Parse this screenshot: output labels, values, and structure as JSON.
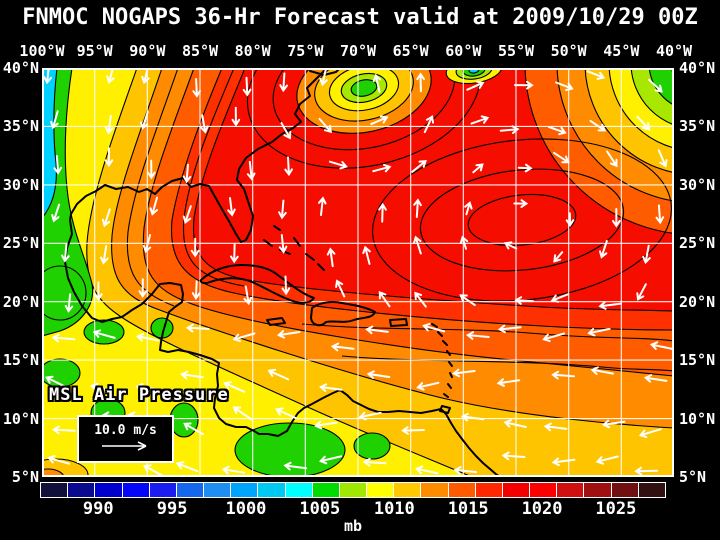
{
  "title": "FNMOC NOGAPS 36-Hr Forecast valid at 2009/10/29 00Z",
  "axes": {
    "lon_labels": [
      "100°W",
      "95°W",
      "90°W",
      "85°W",
      "80°W",
      "75°W",
      "70°W",
      "65°W",
      "60°W",
      "55°W",
      "50°W",
      "45°W",
      "40°W"
    ],
    "lat_labels": [
      "40°N",
      "35°N",
      "30°N",
      "25°N",
      "20°N",
      "15°N",
      "10°N",
      "5°N"
    ]
  },
  "overlay": {
    "field_label": "MSL Air Pressure",
    "wind_scale_label": "10.0 m/s"
  },
  "colorbar": {
    "unit": "mb",
    "tick_labels": [
      "990",
      "995",
      "1000",
      "1005",
      "1010",
      "1015",
      "1020",
      "1025"
    ],
    "cell_colors": [
      "#10103A",
      "#0A0A8F",
      "#0000CD",
      "#0505FA",
      "#1A1CF0",
      "#1567EC",
      "#1E8EF0",
      "#00A4FA",
      "#00C8F0",
      "#00FFFF",
      "#00DC00",
      "#A0E800",
      "#FFFF00",
      "#FFC800",
      "#FF8C00",
      "#FF5A00",
      "#FF2800",
      "#F50000",
      "#FF0000",
      "#D01010",
      "#A01010",
      "#701010",
      "#301010"
    ]
  },
  "chart_data": {
    "type": "heatmap",
    "title": "FNMOC NOGAPS 36-Hr Forecast valid at 2009/10/29 00Z",
    "model": "FNMOC NOGAPS",
    "forecast_hour": 36,
    "valid_time": "2009/10/29 00Z",
    "variable": "MSL Air Pressure",
    "unit": "mb",
    "lon_ticks_deg_w": [
      100,
      95,
      90,
      85,
      80,
      75,
      70,
      65,
      60,
      55,
      50,
      45,
      40
    ],
    "lat_ticks_deg_n": [
      40,
      35,
      30,
      25,
      20,
      15,
      10,
      5
    ],
    "colorbar_ticks_mb": [
      990,
      995,
      1000,
      1005,
      1010,
      1015,
      1020,
      1025
    ],
    "wind_reference_mps": 10.0,
    "palette": {
      "red": "#F50D00",
      "orangered2": "#FF3000",
      "orangered": "#FF5C00",
      "orange": "#FF8C00",
      "amber": "#FFC400",
      "yellow": "#FFF000",
      "ygreen": "#A8E800",
      "green": "#1FD100",
      "cyan": "#00D2FF",
      "contour": "#000000",
      "coast": "#000000",
      "grid": "#FFFFFF",
      "frame": "#FFFFFF",
      "wind": "#FFFFFF"
    },
    "features": [
      {
        "name": "subtropical-high",
        "approx": "55W 27N",
        "pressure_band_mb": "1015-1020"
      },
      {
        "name": "cutoff-low",
        "approx": "70W 38N",
        "pressure_band_mb": "1005-1010"
      },
      {
        "name": "small-low",
        "approx": "62W 40N",
        "pressure_band_mb": "1005"
      },
      {
        "name": "west-trough",
        "approx": "100W 30N",
        "pressure_band_mb": "1000-1005"
      },
      {
        "name": "sw-caribbean-lows",
        "approx": "80W 9N",
        "pressure_band_mb": "1005"
      }
    ],
    "wind_field": {
      "high_center": {
        "fx": 0.759,
        "fy": 0.372
      },
      "cutoff_low_center": {
        "fx": 0.509,
        "fy": 0.049
      },
      "cutoff_low_radius_f": 0.158,
      "trade_winds_south_of_f": 0.575
    }
  }
}
